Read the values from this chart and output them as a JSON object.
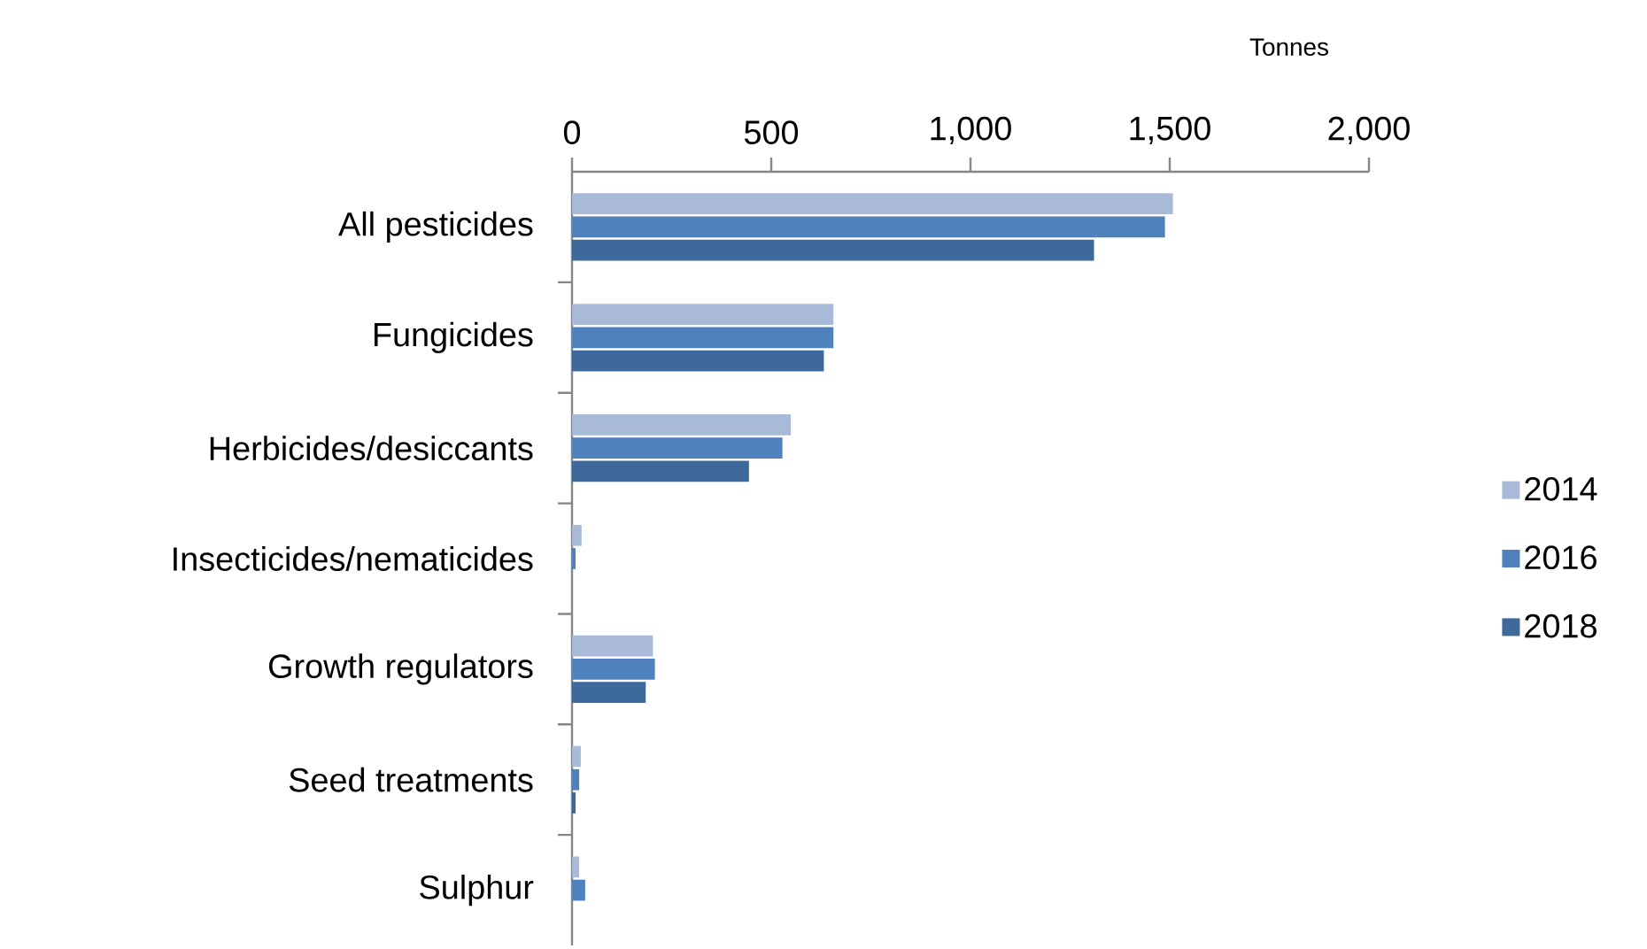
{
  "chart_data": {
    "type": "bar",
    "orientation": "horizontal",
    "xlabel": "Tonnes",
    "categories": [
      "All pesticides",
      "Fungicides",
      "Herbicides/desiccants",
      "Insecticides/nematicides",
      "Growth regulators",
      "Seed treatments",
      "Sulphur"
    ],
    "series": [
      {
        "name": "2014",
        "color": "#a9bad8",
        "values": [
          1508,
          656,
          549,
          24,
          203,
          22,
          18
        ]
      },
      {
        "name": "2016",
        "color": "#4f81bd",
        "values": [
          1488,
          656,
          528,
          9,
          208,
          18,
          33
        ]
      },
      {
        "name": "2018",
        "color": "#3e6a9b",
        "values": [
          1310,
          632,
          444,
          0,
          185,
          9,
          0
        ]
      }
    ],
    "xlim": [
      0,
      2000
    ],
    "xticks": [
      0,
      500,
      {
        "value": 1000,
        "label": "1,000"
      },
      {
        "value": 1500,
        "label": "1,500"
      },
      {
        "value": 2000,
        "label": "2,000"
      }
    ],
    "grid": false,
    "legend": "right"
  }
}
